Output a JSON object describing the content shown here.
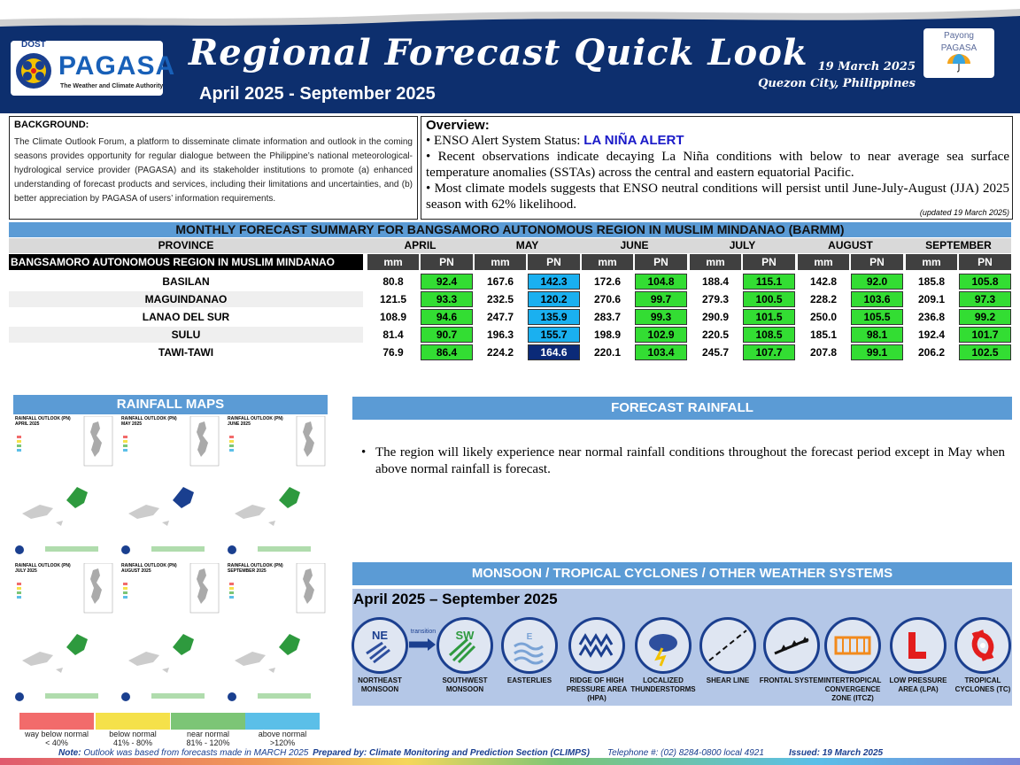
{
  "header": {
    "dost": "DOST",
    "logo_word": "PAGASA",
    "logo_tagline": "The Weather and Climate Authority",
    "title": "Regional Forecast Quick Look",
    "period": "April 2025 - September 2025",
    "date": "19 March 2025",
    "place": "Quezon City, Philippines",
    "payong_line1": "Payong",
    "payong_line2": "PAGASA"
  },
  "background": {
    "title": "BACKGROUND:",
    "text": "The Climate Outlook Forum, a platform to disseminate climate information and outlook in the coming seasons provides opportunity for regular dialogue between the Philippine’s national meteorological-hydrological service provider (PAGASA) and its stakeholder institutions to promote (a) enhanced understanding of forecast products and services, including their limitations and uncertainties, and (b) better appreciation by PAGASA of users’ information requirements."
  },
  "overview": {
    "title": "Overview:",
    "enso_prefix": "• ENSO Alert System Status: ",
    "enso_status": "LA NIÑA ALERT",
    "bullet2": "• Recent observations indicate decaying La Niña conditions with below to near average sea surface temperature anomalies  (SSTAs) across the central and eastern equatorial Pacific.",
    "bullet3": "• Most climate models suggests that ENSO neutral conditions will persist until June-July-August (JJA) 2025 season with 62% likelihood.",
    "updated": "(updated 19 March 2025)"
  },
  "table": {
    "title": "MONTHLY FORECAST SUMMARY FOR BANGSAMORO AUTONOMOUS REGION IN MUSLIM MINDANAO (BARMM)",
    "province_header": "PROVINCE",
    "region_label": "BANGSAMORO AUTONOMOUS REGION IN MUSLIM MINDANAO",
    "months": [
      "APRIL",
      "MAY",
      "JUNE",
      "JULY",
      "AUGUST",
      "SEPTEMBER"
    ],
    "col_mm": "mm",
    "col_pn": "PN",
    "rows": [
      {
        "province": "BASILAN",
        "values": [
          "80.8",
          "92.4",
          "167.6",
          "142.3",
          "172.6",
          "104.8",
          "188.4",
          "115.1",
          "142.8",
          "92.0",
          "185.8",
          "105.8"
        ]
      },
      {
        "province": "MAGUINDANAO",
        "values": [
          "121.5",
          "93.3",
          "232.5",
          "120.2",
          "270.6",
          "99.7",
          "279.3",
          "100.5",
          "228.2",
          "103.6",
          "209.1",
          "97.3"
        ]
      },
      {
        "province": "LANAO DEL SUR",
        "values": [
          "108.9",
          "94.6",
          "247.7",
          "135.9",
          "283.7",
          "99.3",
          "290.9",
          "101.5",
          "250.0",
          "105.5",
          "236.8",
          "99.2"
        ]
      },
      {
        "province": "SULU",
        "values": [
          "81.4",
          "90.7",
          "196.3",
          "155.7",
          "198.9",
          "102.9",
          "220.5",
          "108.5",
          "185.1",
          "98.1",
          "192.4",
          "101.7"
        ]
      },
      {
        "province": "TAWI-TAWI",
        "values": [
          "76.9",
          "86.4",
          "224.2",
          "164.6",
          "220.1",
          "103.4",
          "245.7",
          "107.7",
          "207.8",
          "99.1",
          "206.2",
          "102.5"
        ]
      }
    ],
    "colors": {
      "near_normal": "#33dd33",
      "above_normal": "#1ab0f0",
      "way_above": "#0b2a78"
    }
  },
  "rainfall_maps": {
    "title": "RAINFALL MAPS",
    "panels": [
      {
        "title": "RAINFALL OUTLOOK (PN)",
        "month": "APRIL 2025"
      },
      {
        "title": "RAINFALL OUTLOOK (PN)",
        "month": "MAY 2025"
      },
      {
        "title": "RAINFALL OUTLOOK (PN)",
        "month": "JUNE 2025"
      },
      {
        "title": "RAINFALL OUTLOOK (PN)",
        "month": "JULY 2025"
      },
      {
        "title": "RAINFALL OUTLOOK (PN)",
        "month": "AUGUST 2025"
      },
      {
        "title": "RAINFALL OUTLOOK (PN)",
        "month": "SEPTEMBER 2025"
      }
    ],
    "legend": [
      {
        "label": "way below normal",
        "range": "< 40%",
        "color": "#f26b6b"
      },
      {
        "label": "below normal",
        "range": "41% - 80%",
        "color": "#f5e14a"
      },
      {
        "label": "near normal",
        "range": "81% - 120%",
        "color": "#7cc576"
      },
      {
        "label": "above normal",
        "range": ">120%",
        "color": "#5bbfe8"
      }
    ]
  },
  "forecast_rainfall": {
    "title": "FORECAST RAINFALL",
    "text": "The region will likely experience near normal rainfall conditions throughout the forecast period except in May when above normal rainfall is forecast."
  },
  "weather_systems": {
    "title": "MONSOON / TROPICAL CYCLONES / OTHER WEATHER SYSTEMS",
    "period": "April 2025 – September 2025",
    "transition": "transition",
    "items": [
      {
        "label": "NORTHEAST MONSOON",
        "icon": "northeast-monsoon-icon",
        "code": "NE"
      },
      {
        "label": "SOUTHWEST MONSOON",
        "icon": "southwest-monsoon-icon",
        "code": "SW"
      },
      {
        "label": "EASTERLIES",
        "icon": "easterlies-icon",
        "code": "E"
      },
      {
        "label": "RIDGE OF HIGH PRESSURE AREA (HPA)",
        "icon": "ridge-icon"
      },
      {
        "label": "LOCALIZED THUNDERSTORMS",
        "icon": "thunderstorm-icon"
      },
      {
        "label": "SHEAR LINE",
        "icon": "shear-line-icon"
      },
      {
        "label": "FRONTAL SYSTEM",
        "icon": "frontal-system-icon"
      },
      {
        "label": "INTERTROPICAL CONVERGENCE ZONE (ITCZ)",
        "icon": "itcz-icon"
      },
      {
        "label": "LOW PRESSURE AREA (LPA)",
        "icon": "lpa-icon",
        "code": "L"
      },
      {
        "label": "TROPICAL CYCLONES (TC)",
        "icon": "tropical-cyclone-icon"
      }
    ]
  },
  "footer": {
    "note_label": "Note:",
    "note_text": " Outlook was based from forecasts made in MARCH 2025 ",
    "prepared": "Prepared by: Climate Monitoring and Prediction Section (CLIMPS)",
    "telephone": "Telephone #: (02) 8284-0800 local 4921",
    "issued": "Issued: 19 March 2025"
  }
}
